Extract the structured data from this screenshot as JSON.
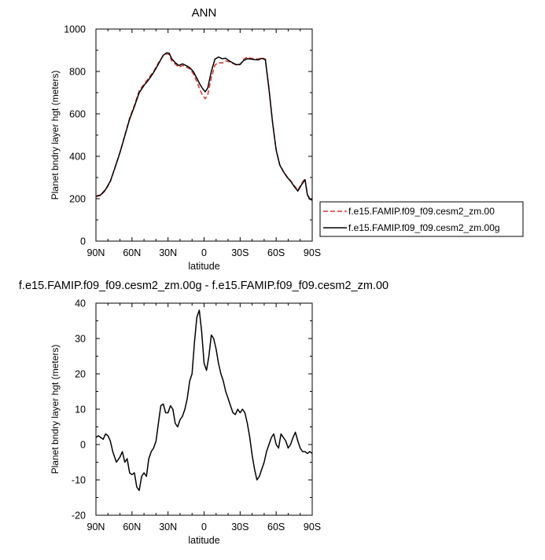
{
  "chart_data": [
    {
      "type": "line",
      "title": "ANN",
      "xlabel": "latitude",
      "ylabel": "Planet bndry layer hgt (meters)",
      "xlim": [
        -90,
        90
      ],
      "ylim": [
        0,
        1000
      ],
      "x_tick_values": [
        -90,
        -60,
        -30,
        0,
        30,
        60,
        90
      ],
      "x_tick_labels": [
        "90N",
        "60N",
        "30N",
        "0",
        "30S",
        "60S",
        "90S"
      ],
      "y_tick_values": [
        0,
        200,
        400,
        600,
        800,
        1000
      ],
      "y_tick_labels": [
        "0",
        "200",
        "400",
        "600",
        "800",
        "1000"
      ],
      "legend_position": "right",
      "series": [
        {
          "name": "f.e15.FAMIP.f09_f09.cesm2_zm.00",
          "color": "#e0332b",
          "dash": "dashed",
          "x": [
            -90,
            -86,
            -82,
            -78,
            -74,
            -70,
            -66,
            -62,
            -58,
            -54,
            -50,
            -46,
            -42,
            -38,
            -34,
            -31,
            -29,
            -27,
            -24,
            -21,
            -18,
            -15,
            -12,
            -9,
            -6,
            -3,
            -1,
            1,
            3,
            6,
            9,
            12,
            15,
            18,
            21,
            24,
            27,
            30,
            33,
            36,
            39,
            42,
            45,
            48,
            51,
            54,
            57,
            60,
            63,
            66,
            69,
            72,
            75,
            78,
            81,
            84,
            86,
            88,
            90
          ],
          "y": [
            210,
            215,
            240,
            280,
            350,
            420,
            500,
            580,
            640,
            710,
            740,
            770,
            800,
            840,
            875,
            884,
            880,
            850,
            835,
            820,
            828,
            822,
            812,
            790,
            752,
            708,
            685,
            672,
            690,
            770,
            830,
            842,
            840,
            850,
            845,
            838,
            830,
            832,
            858,
            868,
            862,
            860,
            858,
            865,
            858,
            720,
            560,
            430,
            360,
            330,
            305,
            285,
            262,
            240,
            270,
            295,
            220,
            200,
            195
          ]
        },
        {
          "name": "f.e15.FAMIP.f09_f09.cesm2_zm.00g",
          "color": "#000000",
          "dash": "solid",
          "x": [
            -90,
            -86,
            -82,
            -78,
            -74,
            -70,
            -66,
            -62,
            -58,
            -54,
            -50,
            -46,
            -42,
            -38,
            -34,
            -31,
            -29,
            -27,
            -24,
            -21,
            -18,
            -15,
            -12,
            -9,
            -6,
            -3,
            -1,
            1,
            3,
            6,
            9,
            12,
            15,
            18,
            21,
            24,
            27,
            30,
            33,
            36,
            39,
            42,
            45,
            48,
            51,
            54,
            57,
            60,
            63,
            66,
            69,
            72,
            75,
            78,
            81,
            84,
            86,
            88,
            90
          ],
          "y": [
            212,
            218,
            243,
            283,
            348,
            418,
            496,
            575,
            635,
            700,
            734,
            762,
            795,
            835,
            877,
            888,
            886,
            860,
            842,
            828,
            836,
            828,
            818,
            800,
            768,
            735,
            717,
            704,
            722,
            800,
            858,
            868,
            860,
            862,
            850,
            840,
            832,
            834,
            852,
            860,
            858,
            856,
            855,
            862,
            856,
            718,
            558,
            428,
            358,
            328,
            302,
            283,
            258,
            236,
            265,
            290,
            218,
            198,
            193
          ]
        }
      ]
    },
    {
      "type": "line",
      "title": "f.e15.FAMIP.f09_f09.cesm2_zm.00g - f.e15.FAMIP.f09_f09.cesm2_zm.00",
      "xlabel": "latitude",
      "ylabel": "Planet bndry layer hgt (meters)",
      "xlim": [
        -90,
        90
      ],
      "ylim": [
        -20,
        40
      ],
      "x_tick_values": [
        -90,
        -60,
        -30,
        0,
        30,
        60,
        90
      ],
      "x_tick_labels": [
        "90N",
        "60N",
        "30N",
        "0",
        "30S",
        "60S",
        "90S"
      ],
      "y_tick_values": [
        -20,
        -10,
        0,
        10,
        20,
        30,
        40
      ],
      "y_tick_labels": [
        "-20",
        "-10",
        "0",
        "10",
        "20",
        "30",
        "40"
      ],
      "series": [
        {
          "color": "#000000",
          "x": [
            -90,
            -88,
            -86,
            -84,
            -82,
            -80,
            -78,
            -76,
            -73,
            -70,
            -68,
            -66,
            -64,
            -62,
            -60,
            -58,
            -56,
            -54,
            -52,
            -50,
            -48,
            -46,
            -44,
            -42,
            -40,
            -38,
            -36,
            -34,
            -32,
            -30,
            -28,
            -26,
            -24,
            -22,
            -20,
            -18,
            -16,
            -14,
            -12,
            -10,
            -8,
            -6,
            -4,
            -2,
            0,
            2,
            4,
            6,
            8,
            10,
            12,
            14,
            16,
            18,
            20,
            22,
            24,
            26,
            28,
            30,
            32,
            34,
            36,
            38,
            40,
            42,
            44,
            46,
            48,
            50,
            52,
            54,
            56,
            58,
            60,
            62,
            64,
            66,
            68,
            70,
            72,
            74,
            76,
            78,
            80,
            82,
            84,
            86,
            88,
            90
          ],
          "y": [
            2,
            2.5,
            2,
            1.5,
            3,
            2.5,
            1,
            -2,
            -5,
            -3.5,
            -2,
            -5,
            -4,
            -8,
            -8.5,
            -8,
            -12,
            -13,
            -9,
            -8,
            -9,
            -4,
            -2,
            -1,
            1,
            6,
            11,
            11.5,
            9,
            9,
            11,
            10,
            6,
            5,
            7,
            8,
            10,
            13,
            18,
            20,
            29,
            36,
            38,
            32,
            23,
            21,
            25,
            31,
            30,
            27,
            23,
            20,
            18,
            15,
            13,
            11,
            9,
            8.5,
            10,
            9,
            10,
            9,
            6,
            2,
            -3,
            -7,
            -10,
            -9,
            -7,
            -5,
            -2,
            0,
            2,
            3,
            0,
            -1,
            3,
            2,
            1,
            -1,
            0,
            2,
            3.5,
            1,
            -1,
            -2,
            -2,
            -2.5,
            -2,
            -2.5
          ]
        }
      ]
    }
  ]
}
